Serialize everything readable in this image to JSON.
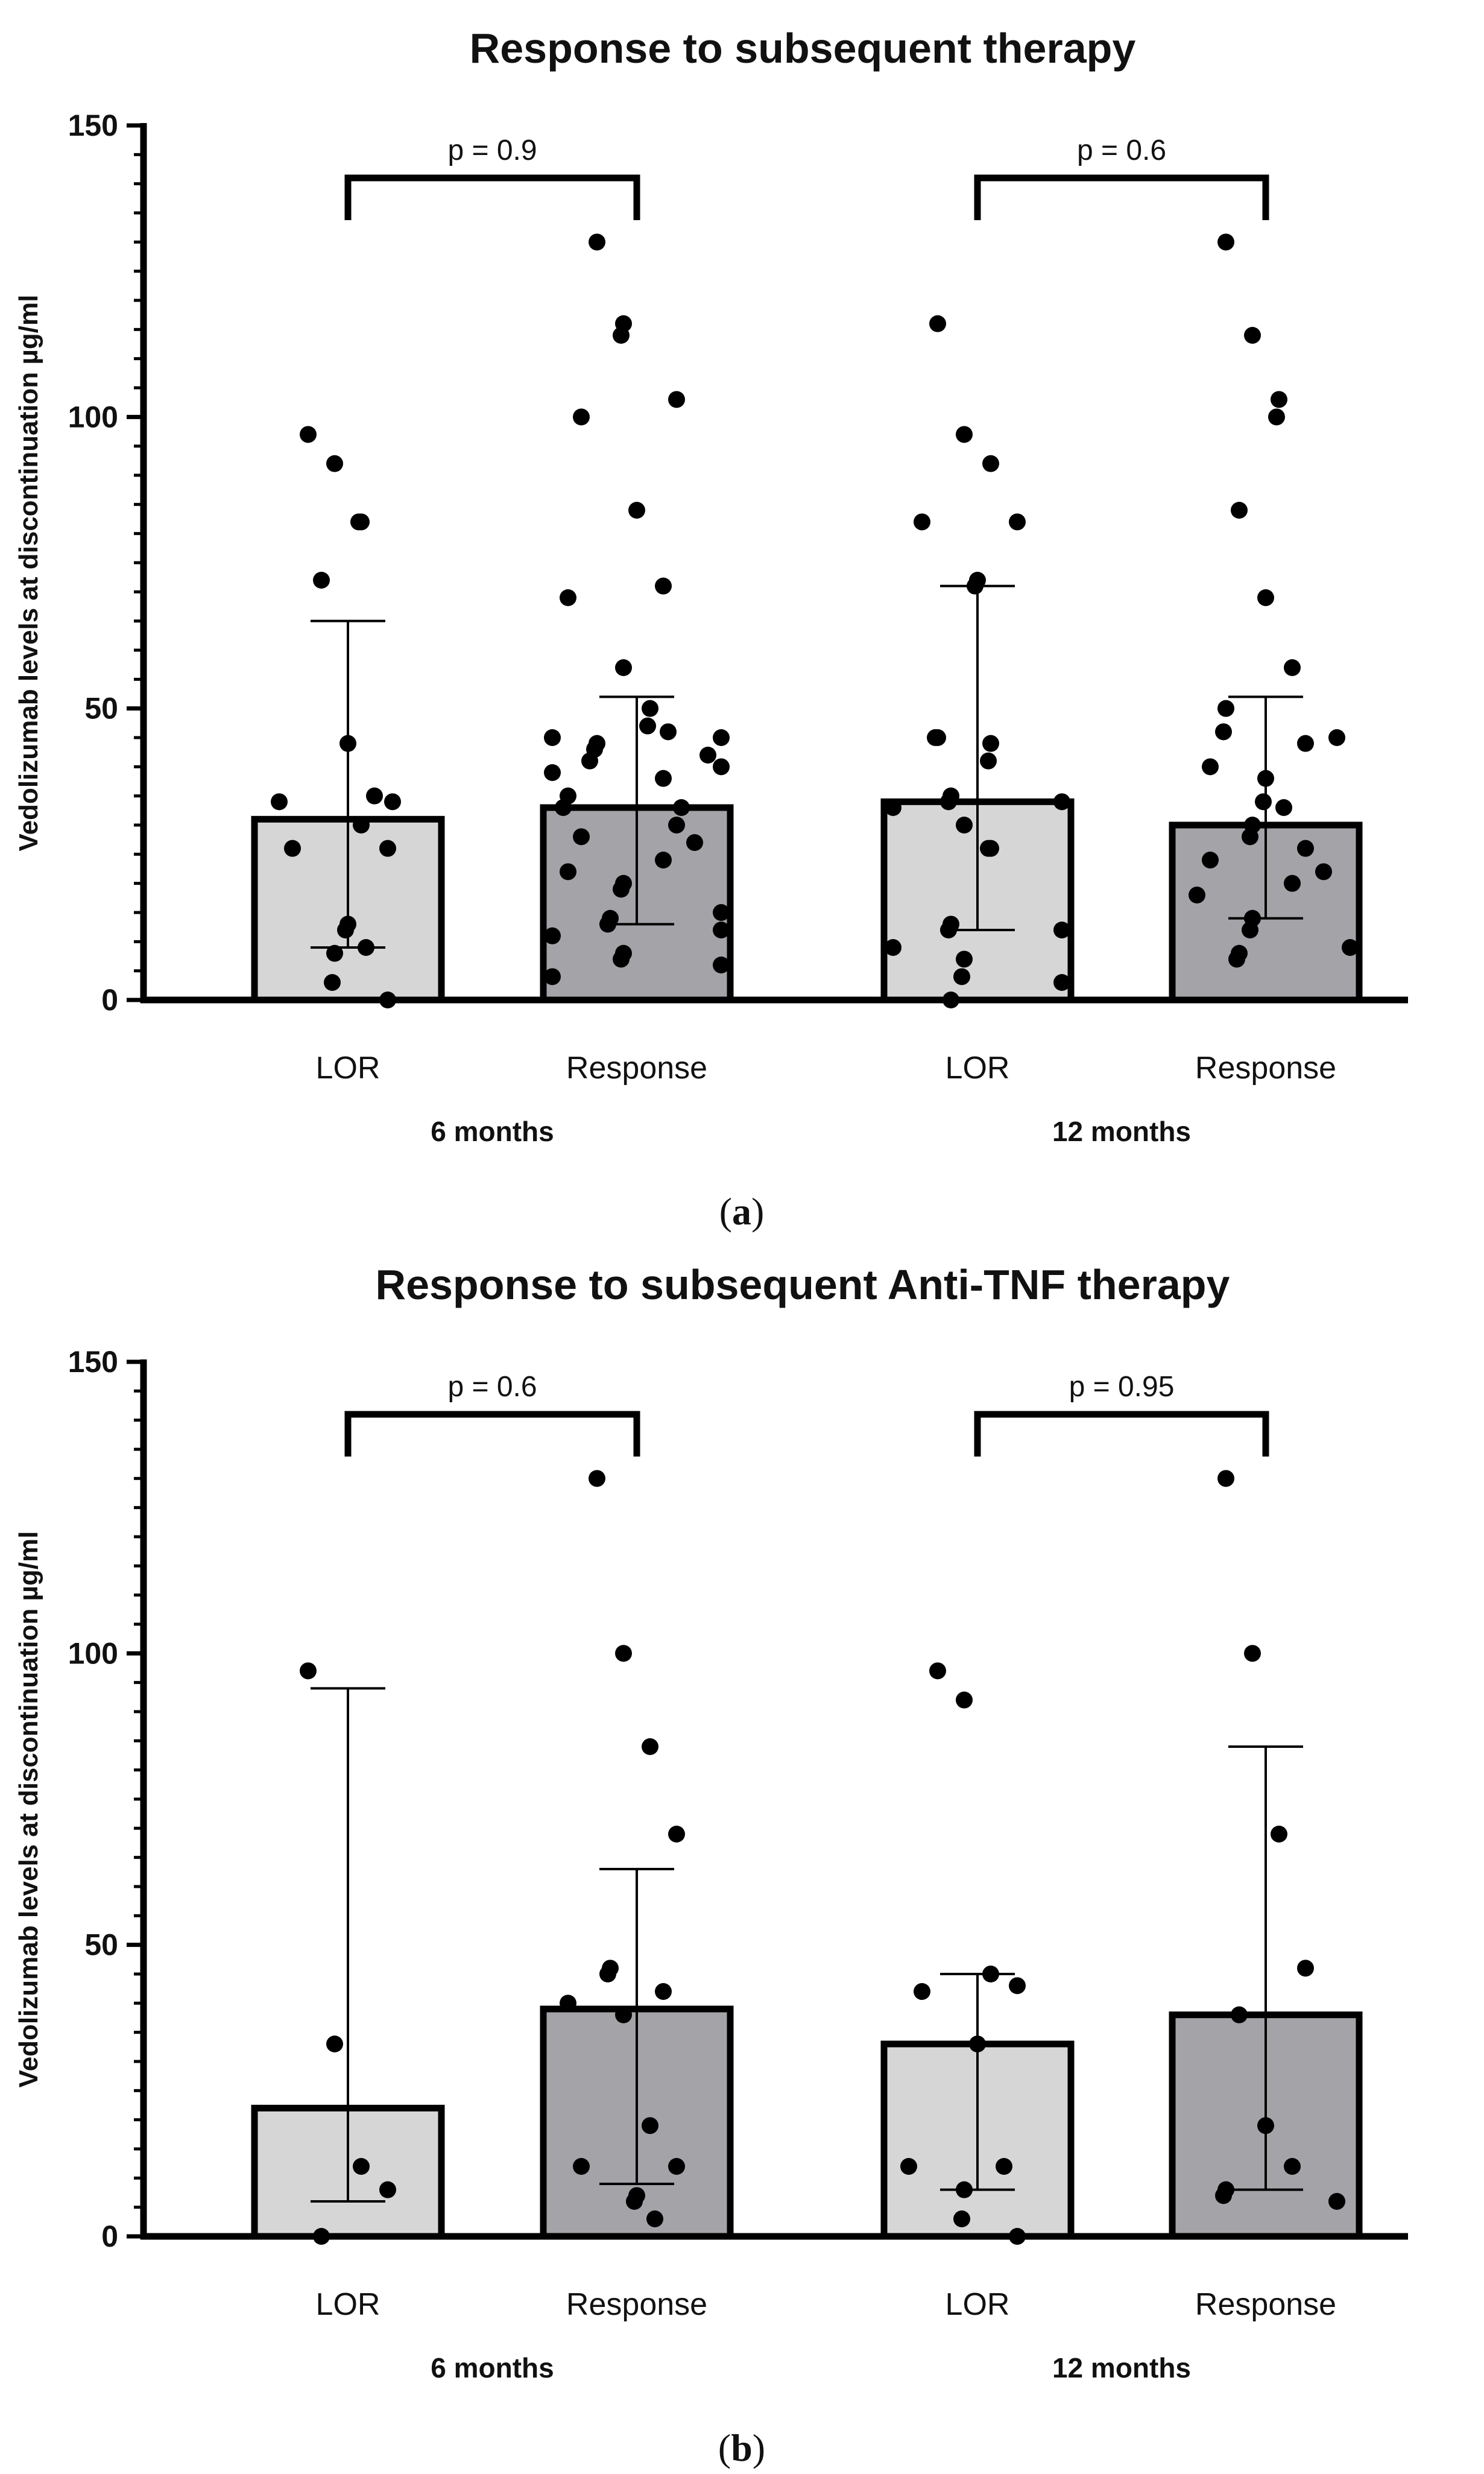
{
  "chart_data": [
    {
      "type": "bar",
      "panel": "a",
      "caption": "(a)",
      "caption_letter": "a",
      "title": "Response to subsequent therapy",
      "ylabel": "Vedolizumab levels at discontinuation µg/ml",
      "ylim": [
        0,
        150
      ],
      "yticks": [
        "0",
        "50",
        "100",
        "150"
      ],
      "groups": [
        {
          "label": "6 months",
          "p_value": "p = 0.9",
          "bars": [
            {
              "label": "LOR",
              "value": 31,
              "err_low": 9,
              "err_high": 65,
              "shade": "light",
              "points": [
                97,
                92,
                82,
                82,
                72,
                44,
                35,
                34,
                34,
                30,
                26,
                26,
                13,
                12,
                9,
                8,
                3,
                0
              ]
            },
            {
              "label": "Response",
              "value": 33,
              "err_low": 13,
              "err_high": 52,
              "shade": "dark",
              "points": [
                130,
                116,
                114,
                103,
                100,
                84,
                71,
                69,
                57,
                50,
                47,
                46,
                45,
                45,
                44,
                43,
                42,
                41,
                40,
                39,
                38,
                35,
                33,
                33,
                30,
                28,
                27,
                24,
                22,
                20,
                19,
                15,
                14,
                13,
                12,
                11,
                8,
                7,
                6,
                4
              ]
            }
          ]
        },
        {
          "label": "12 months",
          "p_value": "p = 0.6",
          "bars": [
            {
              "label": "LOR",
              "value": 34,
              "err_low": 12,
              "err_high": 71,
              "shade": "light",
              "points": [
                116,
                97,
                92,
                82,
                82,
                72,
                71,
                45,
                45,
                44,
                41,
                35,
                34,
                34,
                33,
                30,
                26,
                26,
                13,
                12,
                12,
                9,
                7,
                4,
                3,
                0
              ]
            },
            {
              "label": "Response",
              "value": 30,
              "err_low": 14,
              "err_high": 52,
              "shade": "dark",
              "points": [
                130,
                114,
                103,
                100,
                84,
                69,
                57,
                50,
                46,
                45,
                44,
                40,
                38,
                34,
                33,
                30,
                28,
                26,
                24,
                22,
                20,
                18,
                14,
                12,
                9,
                8,
                7
              ]
            }
          ]
        }
      ]
    },
    {
      "type": "bar",
      "panel": "b",
      "caption": "(b)",
      "caption_letter": "b",
      "title": "Response to subsequent Anti-TNF therapy",
      "ylabel": "Vedolizumab levels at discontinuation µg/ml",
      "ylim": [
        0,
        150
      ],
      "yticks": [
        "0",
        "50",
        "100",
        "150"
      ],
      "groups": [
        {
          "label": "6 months",
          "p_value": "p = 0.6",
          "bars": [
            {
              "label": "LOR",
              "value": 22,
              "err_low": 6,
              "err_high": 94,
              "shade": "light",
              "points": [
                97,
                33,
                12,
                8,
                0
              ]
            },
            {
              "label": "Response",
              "value": 39,
              "err_low": 9,
              "err_high": 63,
              "shade": "dark",
              "points": [
                130,
                100,
                84,
                69,
                46,
                45,
                42,
                40,
                38,
                19,
                12,
                12,
                7,
                6,
                3
              ]
            }
          ]
        },
        {
          "label": "12 months",
          "p_value": "p = 0.95",
          "bars": [
            {
              "label": "LOR",
              "value": 33,
              "err_low": 8,
              "err_high": 45,
              "shade": "light",
              "points": [
                97,
                92,
                45,
                43,
                42,
                33,
                12,
                12,
                8,
                3,
                0
              ]
            },
            {
              "label": "Response",
              "value": 38,
              "err_low": 8,
              "err_high": 84,
              "shade": "dark",
              "points": [
                130,
                100,
                69,
                46,
                38,
                19,
                12,
                8,
                7,
                6
              ]
            }
          ]
        }
      ]
    }
  ],
  "colors": {
    "bar_light": "#d6d6d6",
    "bar_dark": "#a3a3a8",
    "stroke": "#000000",
    "point": "#000000"
  }
}
